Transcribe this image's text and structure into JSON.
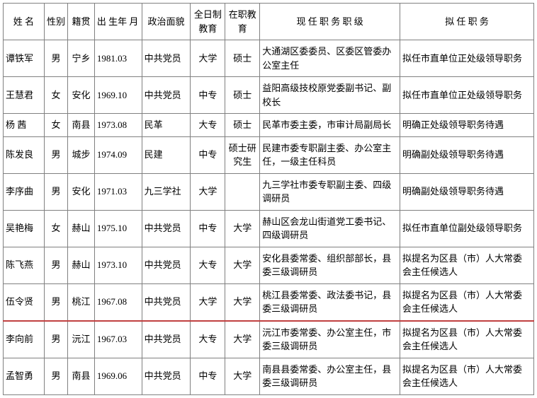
{
  "headers": {
    "name": "姓 名",
    "gender": "性别",
    "origin": "籍贯",
    "birth": "出 生年 月",
    "party": "政治面貌",
    "edu1": "全日制教育",
    "edu2": "在职教育",
    "current": "现 任 职 务 职 级",
    "proposed": "拟 任 职 务"
  },
  "rows": [
    {
      "name": "谭铁军",
      "gender": "男",
      "origin": "宁乡",
      "birth": "1981.03",
      "party": "中共党员",
      "edu1": "大学",
      "edu2": "硕士",
      "current": "大通湖区委委员、区委区管委办公室主任",
      "proposed": "拟任市直单位正处级领导职务",
      "highlight": false
    },
    {
      "name": "王慧君",
      "gender": "女",
      "origin": "安化",
      "birth": "1969.10",
      "party": "中共党员",
      "edu1": "中专",
      "edu2": "硕士",
      "current": "益阳高级技校原党委副书记、副校长",
      "proposed": "拟任市直单位正处级领导职务",
      "highlight": false
    },
    {
      "name": "杨 茜",
      "gender": "女",
      "origin": "南县",
      "birth": "1973.08",
      "party": "民革",
      "edu1": "大专",
      "edu2": "硕士",
      "current": "民革市委主委，市审计局副局长",
      "proposed": "明确正处级领导职务待遇",
      "highlight": false
    },
    {
      "name": "陈发良",
      "gender": "男",
      "origin": "城步",
      "birth": "1974.09",
      "party": "民建",
      "edu1": "中专",
      "edu2": "硕士研究生",
      "current": "民建市委专职副主委、办公室主任，一级主任科员",
      "proposed": "明确副处级领导职务待遇",
      "highlight": false
    },
    {
      "name": "李序曲",
      "gender": "男",
      "origin": "安化",
      "birth": "1971.03",
      "party": "九三学社",
      "edu1": "大学",
      "edu2": "",
      "current": "九三学社市委专职副主委、四级调研员",
      "proposed": "明确副处级领导职务待遇",
      "highlight": false
    },
    {
      "name": "吴艳梅",
      "gender": "女",
      "origin": "赫山",
      "birth": "1975.10",
      "party": "中共党员",
      "edu1": "中专",
      "edu2": "大学",
      "current": "赫山区会龙山街道党工委书记、四级调研员",
      "proposed": "拟任市直单位副处级领导职务",
      "highlight": false
    },
    {
      "name": "陈飞燕",
      "gender": "男",
      "origin": "赫山",
      "birth": "1973.10",
      "party": "中共党员",
      "edu1": "大专",
      "edu2": "大学",
      "current": "安化县委常委、组织部部长，县委三级调研员",
      "proposed": "拟提名为区县（市）人大常委会主任候选人",
      "highlight": false
    },
    {
      "name": "伍令贤",
      "gender": "男",
      "origin": "桃江",
      "birth": "1967.08",
      "party": "中共党员",
      "edu1": "大学",
      "edu2": "大学",
      "current": "桃江县委常委、政法委书记，县委三级调研员",
      "proposed": "拟提名为区县（市）人大常委会主任候选人",
      "highlight": true
    },
    {
      "name": "李向前",
      "gender": "男",
      "origin": "沅江",
      "birth": "1967.03",
      "party": "中共党员",
      "edu1": "大专",
      "edu2": "大学",
      "current": "沅江市委常委、办公室主任，市委三级调研员",
      "proposed": "拟提名为区县（市）人大常委会主任候选人",
      "highlight": false
    },
    {
      "name": "孟智勇",
      "gender": "男",
      "origin": "南县",
      "birth": "1969.06",
      "party": "中共党员",
      "edu1": "中专",
      "edu2": "大学",
      "current": "南县县委常委、办公室主任，县委三级调研员",
      "proposed": "拟提名为区县（市）人大常委会主任候选人",
      "highlight": false
    }
  ],
  "style": {
    "border_color": "#808080",
    "highlight_color": "#c04040",
    "background_color": "#ffffff",
    "font_size": 13
  }
}
